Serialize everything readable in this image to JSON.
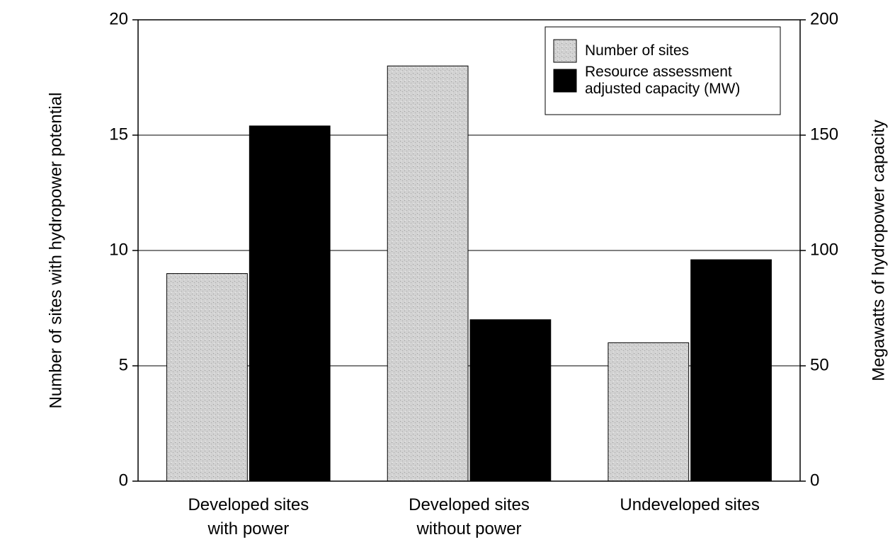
{
  "chart_data": {
    "type": "bar",
    "categories": [
      "Developed sites with power",
      "Developed sites without power",
      "Undeveloped sites"
    ],
    "series": [
      {
        "name": "Number of sites",
        "color": "#d2d2d2",
        "values": [
          9,
          18,
          6
        ]
      },
      {
        "name": "Resource assessment adjusted capacity (MW)",
        "color": "#000000",
        "values": [
          154,
          70,
          96
        ],
        "axis": "y2"
      }
    ],
    "ylabel": "Number of sites with hydropower potential",
    "y2label": "Megawatts of hydropower capacity",
    "ylim": [
      0,
      20
    ],
    "yticks": [
      0,
      5,
      10,
      15,
      20
    ],
    "y2lim": [
      0,
      200
    ],
    "y2ticks": [
      0,
      50,
      100,
      150,
      200
    ],
    "grid": true,
    "legend": "upper right"
  }
}
